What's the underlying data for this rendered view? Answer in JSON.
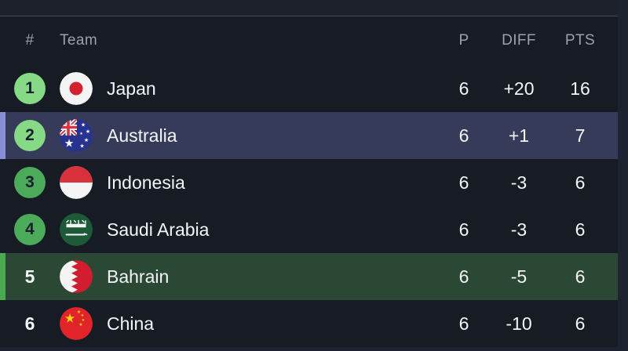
{
  "table": {
    "header": {
      "rank": "#",
      "team": "Team",
      "played": "P",
      "diff": "DIFF",
      "pts": "PTS"
    },
    "rows": [
      {
        "rank": "1",
        "team": "Japan",
        "flag": "japan",
        "p": "6",
        "diff": "+20",
        "pts": "16",
        "rank_style": "circle-light",
        "highlight": "none"
      },
      {
        "rank": "2",
        "team": "Australia",
        "flag": "australia",
        "p": "6",
        "diff": "+1",
        "pts": "7",
        "rank_style": "circle-light",
        "highlight": "blue"
      },
      {
        "rank": "3",
        "team": "Indonesia",
        "flag": "indonesia",
        "p": "6",
        "diff": "-3",
        "pts": "6",
        "rank_style": "circle-dark",
        "highlight": "none"
      },
      {
        "rank": "4",
        "team": "Saudi Arabia",
        "flag": "saudi-arabia",
        "p": "6",
        "diff": "-3",
        "pts": "6",
        "rank_style": "circle-dark",
        "highlight": "none"
      },
      {
        "rank": "5",
        "team": "Bahrain",
        "flag": "bahrain",
        "p": "6",
        "diff": "-5",
        "pts": "6",
        "rank_style": "plain",
        "highlight": "green"
      },
      {
        "rank": "6",
        "team": "China",
        "flag": "china",
        "p": "6",
        "diff": "-10",
        "pts": "6",
        "rank_style": "plain",
        "highlight": "none"
      }
    ]
  },
  "colors": {
    "table_bg": "#161b24",
    "topbar_bg": "#1c212b",
    "divider": "#414854",
    "outer_bg": "#1d2330",
    "header_text": "#9aa2ad",
    "row_text": "#f3f5f7",
    "accent_blue_row": "#353b58",
    "accent_blue_strip": "#8a8ed8",
    "accent_green_row": "#2b4834",
    "accent_green_strip": "#4aaa4f",
    "rank_circle_light": "#86d985",
    "rank_circle_dark": "#4cab5b",
    "rank_number_dark": "#18202e"
  }
}
